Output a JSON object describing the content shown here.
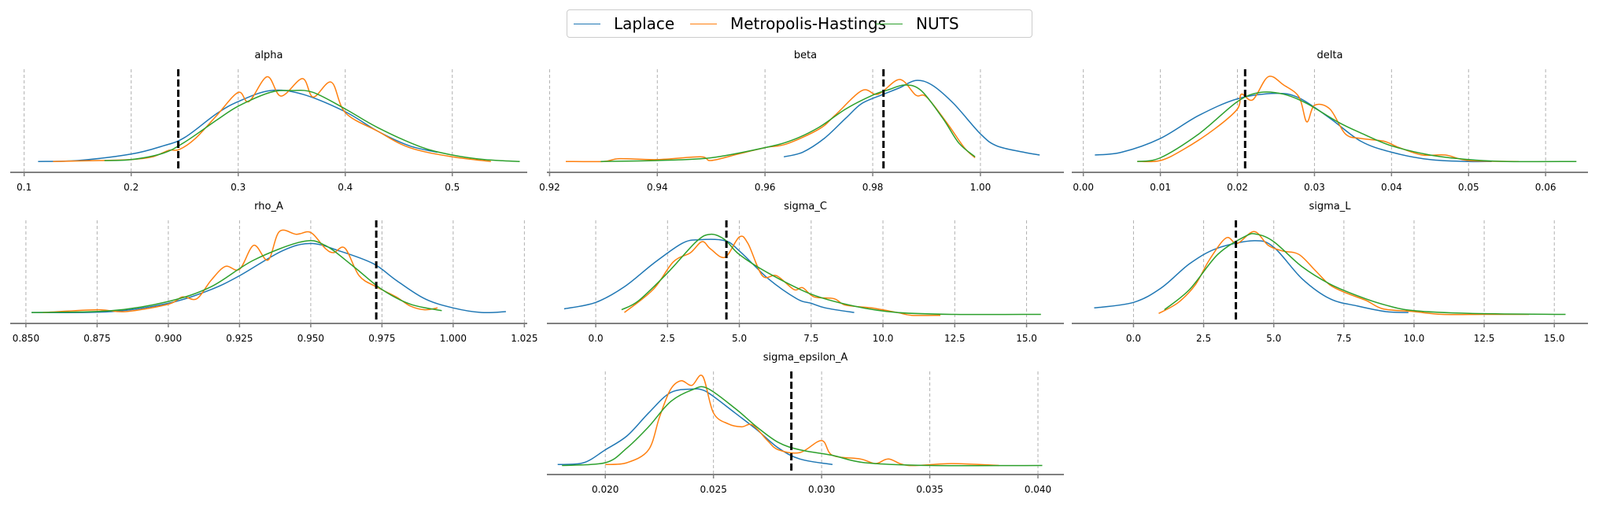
{
  "legend": {
    "placement": "top-center",
    "entries": [
      {
        "name": "Laplace",
        "color": "#1f77b4"
      },
      {
        "name": "Metropolis-Hastings",
        "color": "#ff7f0e"
      },
      {
        "name": "NUTS",
        "color": "#2ca02c"
      }
    ]
  },
  "chart_data": [
    {
      "type": "line",
      "title": "alpha",
      "xlim": [
        0.087,
        0.57
      ],
      "ticks": [
        0.1,
        0.2,
        0.3,
        0.4,
        0.5
      ],
      "tick_labels": [
        "0.1",
        "0.2",
        "0.3",
        "0.4",
        "0.5"
      ],
      "true_value": 0.244,
      "grid": "vertical-dashed",
      "series": [
        {
          "name": "Laplace",
          "x": [
            0.113,
            0.15,
            0.2,
            0.23,
            0.25,
            0.28,
            0.3,
            0.33,
            0.36,
            0.4,
            0.43,
            0.46,
            0.486
          ],
          "y": [
            0.05,
            0.06,
            0.13,
            0.22,
            0.31,
            0.57,
            0.7,
            0.82,
            0.78,
            0.59,
            0.38,
            0.22,
            0.15
          ]
        },
        {
          "name": "Metropolis-Hastings",
          "x": [
            0.127,
            0.17,
            0.2,
            0.22,
            0.235,
            0.245,
            0.26,
            0.28,
            0.3,
            0.31,
            0.327,
            0.34,
            0.36,
            0.37,
            0.387,
            0.4,
            0.43,
            0.46,
            0.5,
            0.536
          ],
          "y": [
            0.05,
            0.06,
            0.07,
            0.1,
            0.17,
            0.18,
            0.3,
            0.55,
            0.8,
            0.7,
            0.97,
            0.76,
            0.95,
            0.75,
            0.91,
            0.58,
            0.38,
            0.2,
            0.1,
            0.05
          ]
        },
        {
          "name": "NUTS",
          "x": [
            0.175,
            0.2,
            0.23,
            0.25,
            0.28,
            0.3,
            0.33,
            0.35,
            0.37,
            0.4,
            0.43,
            0.47,
            0.5,
            0.53,
            0.563
          ],
          "y": [
            0.06,
            0.07,
            0.14,
            0.26,
            0.5,
            0.65,
            0.8,
            0.82,
            0.8,
            0.62,
            0.42,
            0.21,
            0.12,
            0.07,
            0.05
          ]
        }
      ]
    },
    {
      "type": "line",
      "title": "beta",
      "xlim": [
        0.9195,
        1.0155
      ],
      "ticks": [
        0.92,
        0.94,
        0.96,
        0.98,
        1.0
      ],
      "tick_labels": [
        "0.92",
        "0.94",
        "0.96",
        "0.98",
        "1.00"
      ],
      "true_value": 0.982,
      "grid": "vertical-dashed",
      "series": [
        {
          "name": "Laplace",
          "x": [
            0.9635,
            0.967,
            0.971,
            0.975,
            0.978,
            0.982,
            0.985,
            0.988,
            0.991,
            0.995,
            1.0,
            1.003,
            1.008,
            1.011
          ],
          "y": [
            0.1,
            0.15,
            0.3,
            0.52,
            0.68,
            0.78,
            0.85,
            0.93,
            0.88,
            0.68,
            0.35,
            0.22,
            0.15,
            0.12
          ]
        },
        {
          "name": "Metropolis-Hastings",
          "x": [
            0.923,
            0.93,
            0.933,
            0.94,
            0.948,
            0.95,
            0.955,
            0.96,
            0.964,
            0.97,
            0.973,
            0.978,
            0.981,
            0.985,
            0.988,
            0.99,
            0.994,
            0.997,
            0.999
          ],
          "y": [
            0.05,
            0.05,
            0.08,
            0.07,
            0.1,
            0.06,
            0.13,
            0.2,
            0.24,
            0.4,
            0.55,
            0.82,
            0.78,
            0.94,
            0.77,
            0.75,
            0.45,
            0.2,
            0.09
          ]
        },
        {
          "name": "NUTS",
          "x": [
            0.9295,
            0.94,
            0.95,
            0.96,
            0.965,
            0.97,
            0.975,
            0.98,
            0.983,
            0.986,
            0.989,
            0.993,
            0.996,
            0.999
          ],
          "y": [
            0.05,
            0.06,
            0.09,
            0.2,
            0.28,
            0.42,
            0.62,
            0.77,
            0.83,
            0.88,
            0.82,
            0.52,
            0.25,
            0.1
          ]
        }
      ]
    },
    {
      "type": "line",
      "title": "delta",
      "xlim": [
        -0.0015,
        0.0655
      ],
      "ticks": [
        0.0,
        0.01,
        0.02,
        0.03,
        0.04,
        0.05,
        0.06
      ],
      "tick_labels": [
        "0.00",
        "0.01",
        "0.02",
        "0.03",
        "0.04",
        "0.05",
        "0.06"
      ],
      "true_value": 0.021,
      "grid": "vertical-dashed",
      "series": [
        {
          "name": "Laplace",
          "x": [
            0.0015,
            0.005,
            0.01,
            0.015,
            0.02,
            0.025,
            0.028,
            0.032,
            0.036,
            0.04,
            0.045,
            0.05,
            0.053
          ],
          "y": [
            0.12,
            0.15,
            0.3,
            0.55,
            0.73,
            0.79,
            0.74,
            0.52,
            0.27,
            0.15,
            0.07,
            0.05,
            0.05
          ]
        },
        {
          "name": "Metropolis-Hastings",
          "x": [
            0.007,
            0.01,
            0.013,
            0.017,
            0.02,
            0.0205,
            0.022,
            0.024,
            0.026,
            0.028,
            0.029,
            0.03,
            0.032,
            0.034,
            0.036,
            0.039,
            0.041,
            0.044,
            0.047,
            0.05,
            0.0565
          ],
          "y": [
            0.05,
            0.06,
            0.18,
            0.4,
            0.62,
            0.78,
            0.72,
            0.97,
            0.88,
            0.75,
            0.48,
            0.66,
            0.62,
            0.35,
            0.3,
            0.27,
            0.2,
            0.12,
            0.12,
            0.06,
            0.05
          ]
        },
        {
          "name": "NUTS",
          "x": [
            0.007,
            0.01,
            0.015,
            0.02,
            0.023,
            0.026,
            0.029,
            0.033,
            0.036,
            0.04,
            0.045,
            0.05,
            0.055,
            0.064
          ],
          "y": [
            0.05,
            0.09,
            0.35,
            0.7,
            0.8,
            0.78,
            0.68,
            0.48,
            0.36,
            0.22,
            0.12,
            0.07,
            0.05,
            0.05
          ]
        }
      ]
    },
    {
      "type": "line",
      "title": "rho_A",
      "xlim": [
        0.8445,
        1.026
      ],
      "ticks": [
        0.85,
        0.875,
        0.9,
        0.925,
        0.95,
        0.975,
        1.0,
        1.025
      ],
      "tick_labels": [
        "0.850",
        "0.875",
        "0.900",
        "0.925",
        "0.950",
        "0.975",
        "1.000",
        "1.025"
      ],
      "true_value": 0.973,
      "grid": "vertical-dashed",
      "series": [
        {
          "name": "Laplace",
          "x": [
            0.852,
            0.88,
            0.9,
            0.915,
            0.925,
            0.94,
            0.95,
            0.96,
            0.972,
            0.98,
            0.99,
            1.0,
            1.01,
            1.0185
          ],
          "y": [
            0.05,
            0.06,
            0.15,
            0.3,
            0.45,
            0.72,
            0.8,
            0.72,
            0.58,
            0.4,
            0.2,
            0.1,
            0.05,
            0.06
          ]
        },
        {
          "name": "Metropolis-Hastings",
          "x": [
            0.856,
            0.875,
            0.885,
            0.9,
            0.905,
            0.91,
            0.915,
            0.92,
            0.925,
            0.93,
            0.935,
            0.939,
            0.945,
            0.95,
            0.955,
            0.958,
            0.962,
            0.967,
            0.973,
            0.98,
            0.985,
            0.99,
            0.9945
          ],
          "y": [
            0.05,
            0.08,
            0.06,
            0.14,
            0.22,
            0.2,
            0.4,
            0.55,
            0.52,
            0.78,
            0.62,
            0.93,
            0.9,
            0.92,
            0.75,
            0.7,
            0.75,
            0.45,
            0.33,
            0.22,
            0.12,
            0.08,
            0.1
          ]
        },
        {
          "name": "NUTS",
          "x": [
            0.852,
            0.88,
            0.9,
            0.915,
            0.93,
            0.947,
            0.955,
            0.965,
            0.975,
            0.985,
            0.996
          ],
          "y": [
            0.05,
            0.07,
            0.17,
            0.33,
            0.62,
            0.82,
            0.78,
            0.55,
            0.3,
            0.14,
            0.07
          ]
        }
      ]
    },
    {
      "type": "line",
      "title": "sigma_C",
      "xlim": [
        -1.7,
        16.3
      ],
      "ticks": [
        0.0,
        2.5,
        5.0,
        7.5,
        10.0,
        12.5,
        15.0
      ],
      "tick_labels": [
        "0.0",
        "2.5",
        "5.0",
        "7.5",
        "10.0",
        "12.5",
        "15.0"
      ],
      "true_value": 4.55,
      "grid": "vertical-dashed",
      "series": [
        {
          "name": "Laplace",
          "x": [
            -1.1,
            0.0,
            1.0,
            2.0,
            3.0,
            3.6,
            4.5,
            5.0,
            6.0,
            7.0,
            7.5,
            8.0,
            9.0
          ],
          "y": [
            0.09,
            0.16,
            0.33,
            0.58,
            0.8,
            0.84,
            0.83,
            0.72,
            0.42,
            0.2,
            0.15,
            0.1,
            0.05
          ]
        },
        {
          "name": "Metropolis-Hastings",
          "x": [
            1.0,
            2.0,
            2.7,
            3.3,
            3.7,
            4.0,
            4.5,
            5.0,
            5.3,
            5.8,
            6.3,
            6.9,
            7.2,
            7.6,
            8.3,
            8.7,
            9.6,
            10.5,
            11.0,
            12.0
          ],
          "y": [
            0.05,
            0.3,
            0.6,
            0.7,
            0.82,
            0.74,
            0.65,
            0.87,
            0.8,
            0.45,
            0.45,
            0.3,
            0.32,
            0.22,
            0.2,
            0.13,
            0.1,
            0.05,
            0.02,
            0.02
          ]
        },
        {
          "name": "NUTS",
          "x": [
            0.9,
            1.5,
            2.5,
            3.5,
            4.0,
            4.5,
            5.0,
            6.0,
            7.5,
            9.0,
            10.5,
            12.5,
            15.5
          ],
          "y": [
            0.08,
            0.18,
            0.48,
            0.82,
            0.9,
            0.84,
            0.68,
            0.48,
            0.25,
            0.12,
            0.05,
            0.03,
            0.03
          ]
        }
      ]
    },
    {
      "type": "line",
      "title": "sigma_L",
      "xlim": [
        -2.2,
        16.2
      ],
      "ticks": [
        0.0,
        2.5,
        5.0,
        7.5,
        10.0,
        12.5,
        15.0
      ],
      "tick_labels": [
        "0.0",
        "2.5",
        "5.0",
        "7.5",
        "10.0",
        "12.5",
        "15.0"
      ],
      "true_value": 3.65,
      "grid": "vertical-dashed",
      "series": [
        {
          "name": "Laplace",
          "x": [
            -1.4,
            0.0,
            1.0,
            2.0,
            3.0,
            4.3,
            5.0,
            6.0,
            7.0,
            8.0,
            9.0,
            9.8
          ],
          "y": [
            0.1,
            0.16,
            0.32,
            0.58,
            0.75,
            0.83,
            0.76,
            0.42,
            0.2,
            0.12,
            0.06,
            0.05
          ]
        },
        {
          "name": "Metropolis-Hastings",
          "x": [
            0.9,
            1.6,
            2.2,
            2.7,
            3.3,
            3.7,
            4.3,
            4.8,
            5.3,
            5.9,
            6.5,
            7.0,
            7.6,
            8.3,
            8.9,
            10.0,
            11.0,
            12.5,
            14.1
          ],
          "y": [
            0.04,
            0.16,
            0.35,
            0.62,
            0.86,
            0.8,
            0.93,
            0.78,
            0.72,
            0.68,
            0.5,
            0.35,
            0.26,
            0.18,
            0.09,
            0.06,
            0.03,
            0.03,
            0.03
          ]
        },
        {
          "name": "NUTS",
          "x": [
            1.1,
            2.0,
            3.0,
            4.0,
            4.4,
            5.0,
            6.0,
            7.0,
            8.0,
            9.0,
            10.0,
            12.0,
            15.4
          ],
          "y": [
            0.08,
            0.3,
            0.68,
            0.88,
            0.9,
            0.82,
            0.55,
            0.36,
            0.23,
            0.13,
            0.07,
            0.04,
            0.03
          ]
        }
      ]
    },
    {
      "type": "line",
      "title": "sigma_epsilon_A",
      "xlim": [
        0.0173,
        0.0412
      ],
      "ticks": [
        0.02,
        0.025,
        0.03,
        0.035,
        0.04
      ],
      "tick_labels": [
        "0.020",
        "0.025",
        "0.030",
        "0.035",
        "0.040"
      ],
      "true_value": 0.0286,
      "grid": "vertical-dashed",
      "series": [
        {
          "name": "Laplace",
          "x": [
            0.0178,
            0.019,
            0.02,
            0.021,
            0.022,
            0.023,
            0.024,
            0.0245,
            0.025,
            0.026,
            0.027,
            0.028,
            0.029,
            0.0305
          ],
          "y": [
            0.04,
            0.06,
            0.2,
            0.35,
            0.6,
            0.82,
            0.86,
            0.85,
            0.78,
            0.6,
            0.42,
            0.22,
            0.1,
            0.04
          ]
        },
        {
          "name": "Metropolis-Hastings",
          "x": [
            0.02,
            0.021,
            0.022,
            0.0225,
            0.023,
            0.0235,
            0.024,
            0.0245,
            0.025,
            0.0257,
            0.0263,
            0.0268,
            0.0275,
            0.028,
            0.029,
            0.03,
            0.0305,
            0.0318,
            0.0325,
            0.0331,
            0.034,
            0.036,
            0.0382
          ],
          "y": [
            0.04,
            0.06,
            0.2,
            0.55,
            0.85,
            0.95,
            0.9,
            1.0,
            0.6,
            0.48,
            0.45,
            0.47,
            0.3,
            0.2,
            0.17,
            0.3,
            0.14,
            0.1,
            0.05,
            0.1,
            0.03,
            0.05,
            0.03
          ]
        },
        {
          "name": "NUTS",
          "x": [
            0.018,
            0.02,
            0.021,
            0.022,
            0.023,
            0.024,
            0.0247,
            0.026,
            0.027,
            0.028,
            0.029,
            0.0305,
            0.032,
            0.035,
            0.0402
          ],
          "y": [
            0.03,
            0.06,
            0.22,
            0.45,
            0.72,
            0.85,
            0.87,
            0.65,
            0.45,
            0.28,
            0.2,
            0.14,
            0.06,
            0.03,
            0.03
          ]
        }
      ]
    }
  ]
}
